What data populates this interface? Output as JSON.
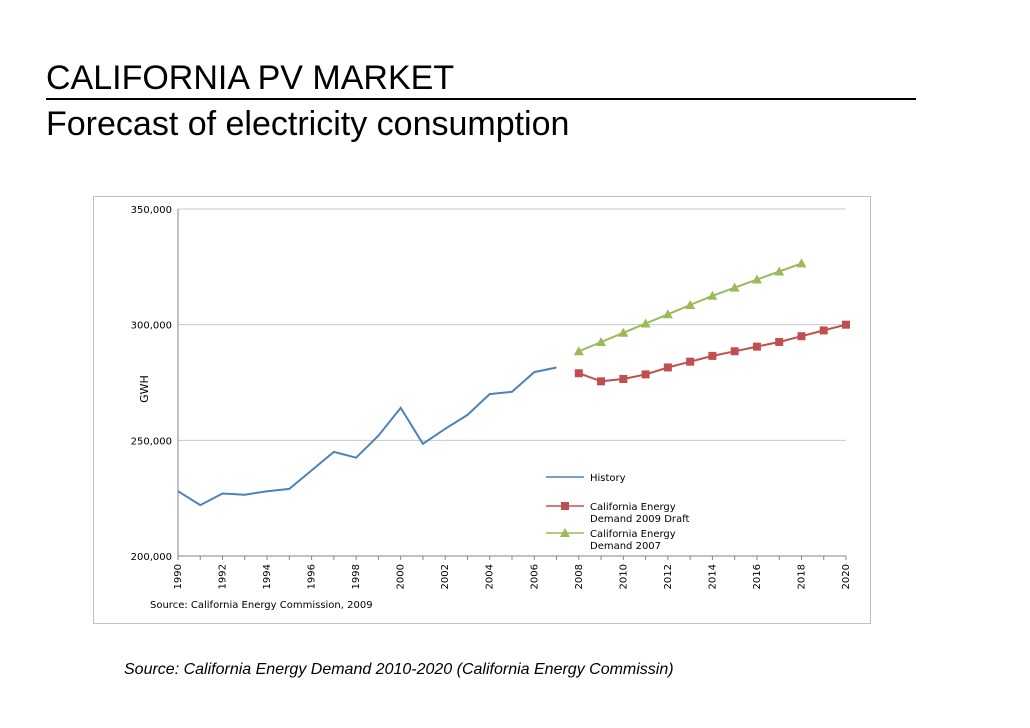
{
  "slide": {
    "title": "CALIFORNIA PV MARKET",
    "subtitle": "Forecast of electricity consumption",
    "footer": "Source: California Energy Demand 2010-2020 (California Energy Commissin)"
  },
  "chart_data": {
    "type": "line",
    "title": "",
    "xlabel": "",
    "ylabel": "GWH",
    "ylim": [
      200000,
      350000
    ],
    "xlim": [
      1990,
      2020
    ],
    "y_ticks": [
      "200,000",
      "250,000",
      "300,000",
      "350,000"
    ],
    "y_tick_values": [
      200000,
      250000,
      300000,
      350000
    ],
    "x_ticks": [
      "1990",
      "1992",
      "1994",
      "1996",
      "1998",
      "2000",
      "2002",
      "2004",
      "2006",
      "2008",
      "2010",
      "2012",
      "2014",
      "2016",
      "2018",
      "2020"
    ],
    "grid": "horizontal",
    "legend_position": "bottom-right",
    "source_note": "Source: California Energy Commission, 2009",
    "series": [
      {
        "name": "History",
        "color": "#4f81bd",
        "marker": "none",
        "x": [
          1990,
          1991,
          1992,
          1993,
          1994,
          1995,
          1996,
          1997,
          1998,
          1999,
          2000,
          2001,
          2002,
          2003,
          2004,
          2005,
          2006,
          2007
        ],
        "y": [
          228000,
          222000,
          227000,
          226500,
          228000,
          229000,
          237000,
          245000,
          242500,
          252000,
          264000,
          248500,
          255000,
          261000,
          270000,
          271000,
          279500,
          281500
        ]
      },
      {
        "name": "California Energy Demand 2009 Draft",
        "color": "#c0504d",
        "marker": "square",
        "x": [
          2008,
          2009,
          2010,
          2011,
          2012,
          2013,
          2014,
          2015,
          2016,
          2017,
          2018,
          2019,
          2020
        ],
        "y": [
          279000,
          275500,
          276500,
          278500,
          281500,
          284000,
          286500,
          288500,
          290500,
          292500,
          295000,
          297500,
          300000
        ]
      },
      {
        "name": "California Energy Demand 2007",
        "color": "#9bbb59",
        "marker": "triangle",
        "x": [
          2008,
          2009,
          2010,
          2011,
          2012,
          2013,
          2014,
          2015,
          2016,
          2017,
          2018
        ],
        "y": [
          288500,
          292500,
          296500,
          300500,
          304500,
          308500,
          312500,
          316000,
          319500,
          323000,
          326500
        ]
      }
    ]
  }
}
